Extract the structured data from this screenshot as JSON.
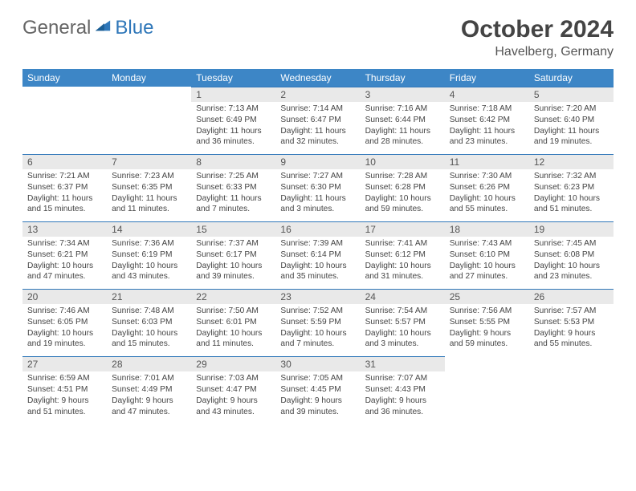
{
  "logo": {
    "text_a": "General",
    "text_b": "Blue"
  },
  "title": "October 2024",
  "subtitle": "Havelberg, Germany",
  "colors": {
    "header_bg": "#3d86c6",
    "header_text": "#ffffff",
    "daynum_bg": "#e9e9e9",
    "cell_rule": "#2f77b9",
    "title_color": "#444",
    "subtitle_color": "#555",
    "logo_blue": "#2f77b9",
    "logo_gray": "#666"
  },
  "fontsize": {
    "title": 30,
    "subtitle": 16,
    "weekday": 12,
    "daynum": 12,
    "info": 10.2
  },
  "weekdays": [
    "Sunday",
    "Monday",
    "Tuesday",
    "Wednesday",
    "Thursday",
    "Friday",
    "Saturday"
  ],
  "weeks": [
    [
      null,
      null,
      {
        "n": "1",
        "sr": "Sunrise: 7:13 AM",
        "ss": "Sunset: 6:49 PM",
        "dl": "Daylight: 11 hours and 36 minutes."
      },
      {
        "n": "2",
        "sr": "Sunrise: 7:14 AM",
        "ss": "Sunset: 6:47 PM",
        "dl": "Daylight: 11 hours and 32 minutes."
      },
      {
        "n": "3",
        "sr": "Sunrise: 7:16 AM",
        "ss": "Sunset: 6:44 PM",
        "dl": "Daylight: 11 hours and 28 minutes."
      },
      {
        "n": "4",
        "sr": "Sunrise: 7:18 AM",
        "ss": "Sunset: 6:42 PM",
        "dl": "Daylight: 11 hours and 23 minutes."
      },
      {
        "n": "5",
        "sr": "Sunrise: 7:20 AM",
        "ss": "Sunset: 6:40 PM",
        "dl": "Daylight: 11 hours and 19 minutes."
      }
    ],
    [
      {
        "n": "6",
        "sr": "Sunrise: 7:21 AM",
        "ss": "Sunset: 6:37 PM",
        "dl": "Daylight: 11 hours and 15 minutes."
      },
      {
        "n": "7",
        "sr": "Sunrise: 7:23 AM",
        "ss": "Sunset: 6:35 PM",
        "dl": "Daylight: 11 hours and 11 minutes."
      },
      {
        "n": "8",
        "sr": "Sunrise: 7:25 AM",
        "ss": "Sunset: 6:33 PM",
        "dl": "Daylight: 11 hours and 7 minutes."
      },
      {
        "n": "9",
        "sr": "Sunrise: 7:27 AM",
        "ss": "Sunset: 6:30 PM",
        "dl": "Daylight: 11 hours and 3 minutes."
      },
      {
        "n": "10",
        "sr": "Sunrise: 7:28 AM",
        "ss": "Sunset: 6:28 PM",
        "dl": "Daylight: 10 hours and 59 minutes."
      },
      {
        "n": "11",
        "sr": "Sunrise: 7:30 AM",
        "ss": "Sunset: 6:26 PM",
        "dl": "Daylight: 10 hours and 55 minutes."
      },
      {
        "n": "12",
        "sr": "Sunrise: 7:32 AM",
        "ss": "Sunset: 6:23 PM",
        "dl": "Daylight: 10 hours and 51 minutes."
      }
    ],
    [
      {
        "n": "13",
        "sr": "Sunrise: 7:34 AM",
        "ss": "Sunset: 6:21 PM",
        "dl": "Daylight: 10 hours and 47 minutes."
      },
      {
        "n": "14",
        "sr": "Sunrise: 7:36 AM",
        "ss": "Sunset: 6:19 PM",
        "dl": "Daylight: 10 hours and 43 minutes."
      },
      {
        "n": "15",
        "sr": "Sunrise: 7:37 AM",
        "ss": "Sunset: 6:17 PM",
        "dl": "Daylight: 10 hours and 39 minutes."
      },
      {
        "n": "16",
        "sr": "Sunrise: 7:39 AM",
        "ss": "Sunset: 6:14 PM",
        "dl": "Daylight: 10 hours and 35 minutes."
      },
      {
        "n": "17",
        "sr": "Sunrise: 7:41 AM",
        "ss": "Sunset: 6:12 PM",
        "dl": "Daylight: 10 hours and 31 minutes."
      },
      {
        "n": "18",
        "sr": "Sunrise: 7:43 AM",
        "ss": "Sunset: 6:10 PM",
        "dl": "Daylight: 10 hours and 27 minutes."
      },
      {
        "n": "19",
        "sr": "Sunrise: 7:45 AM",
        "ss": "Sunset: 6:08 PM",
        "dl": "Daylight: 10 hours and 23 minutes."
      }
    ],
    [
      {
        "n": "20",
        "sr": "Sunrise: 7:46 AM",
        "ss": "Sunset: 6:05 PM",
        "dl": "Daylight: 10 hours and 19 minutes."
      },
      {
        "n": "21",
        "sr": "Sunrise: 7:48 AM",
        "ss": "Sunset: 6:03 PM",
        "dl": "Daylight: 10 hours and 15 minutes."
      },
      {
        "n": "22",
        "sr": "Sunrise: 7:50 AM",
        "ss": "Sunset: 6:01 PM",
        "dl": "Daylight: 10 hours and 11 minutes."
      },
      {
        "n": "23",
        "sr": "Sunrise: 7:52 AM",
        "ss": "Sunset: 5:59 PM",
        "dl": "Daylight: 10 hours and 7 minutes."
      },
      {
        "n": "24",
        "sr": "Sunrise: 7:54 AM",
        "ss": "Sunset: 5:57 PM",
        "dl": "Daylight: 10 hours and 3 minutes."
      },
      {
        "n": "25",
        "sr": "Sunrise: 7:56 AM",
        "ss": "Sunset: 5:55 PM",
        "dl": "Daylight: 9 hours and 59 minutes."
      },
      {
        "n": "26",
        "sr": "Sunrise: 7:57 AM",
        "ss": "Sunset: 5:53 PM",
        "dl": "Daylight: 9 hours and 55 minutes."
      }
    ],
    [
      {
        "n": "27",
        "sr": "Sunrise: 6:59 AM",
        "ss": "Sunset: 4:51 PM",
        "dl": "Daylight: 9 hours and 51 minutes."
      },
      {
        "n": "28",
        "sr": "Sunrise: 7:01 AM",
        "ss": "Sunset: 4:49 PM",
        "dl": "Daylight: 9 hours and 47 minutes."
      },
      {
        "n": "29",
        "sr": "Sunrise: 7:03 AM",
        "ss": "Sunset: 4:47 PM",
        "dl": "Daylight: 9 hours and 43 minutes."
      },
      {
        "n": "30",
        "sr": "Sunrise: 7:05 AM",
        "ss": "Sunset: 4:45 PM",
        "dl": "Daylight: 9 hours and 39 minutes."
      },
      {
        "n": "31",
        "sr": "Sunrise: 7:07 AM",
        "ss": "Sunset: 4:43 PM",
        "dl": "Daylight: 9 hours and 36 minutes."
      },
      null,
      null
    ]
  ]
}
